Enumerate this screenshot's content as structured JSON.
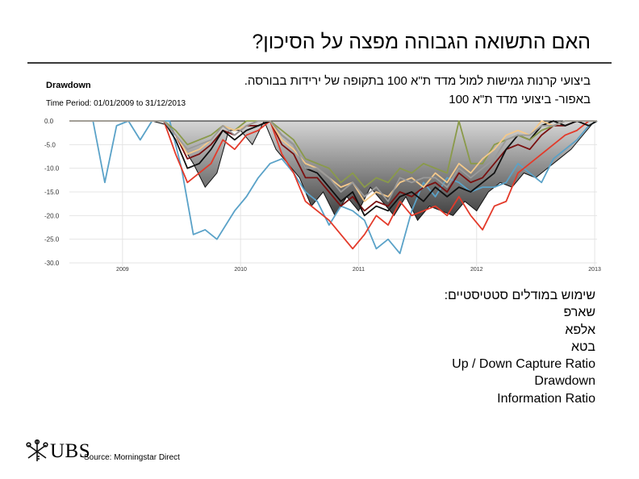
{
  "slide": {
    "title": "האם התשואה הגבוהה מפצה על הסיכון?",
    "desc_line1": "ביצועי קרנות גמישות למול מדד ת\"א 100 בתקופה של ירידות בבורסה.",
    "desc_line2": "באפור- ביצועי מדד ת\"א 100",
    "list_heading": "שימוש במודלים סטטיסטיים:",
    "list_items": [
      "שארפ",
      "אלפא",
      "בטא",
      "Up / Down Capture Ratio",
      "Drawdown",
      "Information Ratio"
    ],
    "brand": "UBS",
    "source": "Source: Morningstar Direct"
  },
  "colors": {
    "area_top": "#d6d6d6",
    "area_bottom": "#3b3b3b",
    "grid": "#e4e4e4",
    "text": "#000000"
  },
  "chart_data": {
    "type": "line",
    "title": "Drawdown",
    "subtitle": "Time Period: 01/01/2009 to 31/12/2013",
    "ylim": [
      -30,
      0
    ],
    "xlim": [
      2008.55,
      2013.02
    ],
    "y_ticks": [
      0,
      -5,
      -10,
      -15,
      -20,
      -25,
      -30
    ],
    "y_tick_labels": [
      "0.0",
      "-5.0",
      "-10.0",
      "-15.0",
      "-20.0",
      "-25.0",
      "-30.0"
    ],
    "x_ticks": [
      2009,
      2010,
      2011,
      2012,
      2013
    ],
    "x_tick_labels": [
      "2009",
      "2010",
      "2011",
      "2012",
      "2013"
    ],
    "area": {
      "name": "TA-100",
      "color": "#555555",
      "x": [
        2008.8,
        2008.95,
        2009.1,
        2009.25,
        2009.4,
        2009.5,
        2009.6,
        2009.7,
        2009.8,
        2009.9,
        2010.0,
        2010.1,
        2010.2,
        2010.3,
        2010.4,
        2010.5,
        2010.6,
        2010.7,
        2010.8,
        2010.9,
        2011.0,
        2011.1,
        2011.2,
        2011.3,
        2011.4,
        2011.5,
        2011.6,
        2011.7,
        2011.8,
        2011.9,
        2012.0,
        2012.1,
        2012.2,
        2012.3,
        2012.4,
        2012.5,
        2012.6,
        2012.7,
        2012.8,
        2012.9,
        2013.0
      ],
      "values": [
        0,
        0,
        0,
        0,
        -1,
        -5,
        -9,
        -14,
        -11,
        -2,
        -2,
        -5,
        0,
        -6,
        -9,
        -12,
        -18,
        -15,
        -20,
        -16,
        -19,
        -14,
        -17,
        -20,
        -16,
        -21,
        -18,
        -19,
        -20,
        -17,
        -19,
        -15,
        -13,
        -14,
        -11,
        -12,
        -10,
        -8,
        -6,
        -3,
        0
      ]
    },
    "series": [
      {
        "name": "light-blue",
        "color": "#5aa2c8",
        "x": [
          2008.55,
          2008.75,
          2008.85,
          2008.95,
          2009.05,
          2009.15,
          2009.25,
          2009.4,
          2009.5,
          2009.6,
          2009.7,
          2009.8,
          2009.95,
          2010.05,
          2010.15,
          2010.25,
          2010.35,
          2010.45,
          2010.55,
          2010.65,
          2010.75,
          2010.85,
          2010.95,
          2011.05,
          2011.15,
          2011.25,
          2011.35,
          2011.45,
          2011.55,
          2011.65,
          2011.75,
          2011.85,
          2011.95,
          2012.05,
          2012.15,
          2012.25,
          2012.35,
          2012.45,
          2012.55,
          2012.65,
          2012.75,
          2012.85,
          2012.95,
          2013.02
        ],
        "values": [
          0,
          0,
          -13,
          -1,
          0,
          -4,
          0,
          0,
          -10,
          -24,
          -23,
          -25,
          -19,
          -16,
          -12,
          -9,
          -8,
          -11,
          -15,
          -17,
          -22,
          -18,
          -19,
          -21,
          -27,
          -25,
          -28,
          -19,
          -13,
          -16,
          -12,
          -13,
          -15,
          -14,
          -14,
          -13,
          -9,
          -11,
          -13,
          -8,
          -6,
          -4,
          -1,
          0
        ]
      },
      {
        "name": "red",
        "color": "#e33a2a",
        "x": [
          2008.55,
          2009.35,
          2009.45,
          2009.55,
          2009.65,
          2009.75,
          2009.85,
          2009.95,
          2010.05,
          2010.15,
          2010.25,
          2010.35,
          2010.45,
          2010.55,
          2010.65,
          2010.75,
          2010.85,
          2010.95,
          2011.05,
          2011.15,
          2011.25,
          2011.35,
          2011.45,
          2011.55,
          2011.65,
          2011.75,
          2011.85,
          2011.95,
          2012.05,
          2012.15,
          2012.25,
          2012.35,
          2012.45,
          2012.55,
          2012.65,
          2012.75,
          2012.85,
          2012.95,
          2013.02
        ],
        "values": [
          0,
          0,
          -7,
          -13,
          -11,
          -9,
          -4,
          -6,
          -3,
          -2,
          0,
          -7,
          -11,
          -17,
          -19,
          -21,
          -24,
          -27,
          -24,
          -20,
          -22,
          -17,
          -20,
          -19,
          -18,
          -20,
          -16,
          -20,
          -23,
          -18,
          -17,
          -11,
          -9,
          -7,
          -5,
          -3,
          -2,
          0,
          0
        ]
      },
      {
        "name": "dark-red",
        "color": "#7a1010",
        "x": [
          2008.55,
          2009.35,
          2009.45,
          2009.55,
          2009.65,
          2009.75,
          2009.85,
          2009.95,
          2010.05,
          2010.15,
          2010.25,
          2010.35,
          2010.45,
          2010.55,
          2010.65,
          2010.75,
          2010.85,
          2010.95,
          2011.05,
          2011.15,
          2011.25,
          2011.35,
          2011.45,
          2011.55,
          2011.65,
          2011.75,
          2011.85,
          2011.95,
          2012.05,
          2012.15,
          2012.25,
          2012.35,
          2012.45,
          2012.55,
          2012.65,
          2012.75,
          2012.85,
          2012.95,
          2013.02
        ],
        "values": [
          0,
          0,
          -3,
          -8,
          -7,
          -5,
          -2,
          -3,
          -1,
          -1,
          0,
          -5,
          -7,
          -12,
          -12,
          -15,
          -18,
          -16,
          -19,
          -17,
          -18,
          -15,
          -16,
          -14,
          -13,
          -15,
          -11,
          -13,
          -12,
          -9,
          -6,
          -5,
          -6,
          -3,
          -1,
          -1,
          0,
          0,
          0
        ]
      },
      {
        "name": "black",
        "color": "#111111",
        "x": [
          2008.55,
          2009.35,
          2009.45,
          2009.55,
          2009.65,
          2009.75,
          2009.85,
          2009.95,
          2010.05,
          2010.15,
          2010.25,
          2010.35,
          2010.45,
          2010.55,
          2010.65,
          2010.75,
          2010.85,
          2010.95,
          2011.05,
          2011.15,
          2011.25,
          2011.35,
          2011.45,
          2011.55,
          2011.65,
          2011.75,
          2011.85,
          2011.95,
          2012.05,
          2012.15,
          2012.25,
          2012.35,
          2012.45,
          2012.55,
          2012.65,
          2012.75,
          2012.85,
          2012.95,
          2013.02
        ],
        "values": [
          0,
          0,
          -4,
          -10,
          -9,
          -6,
          -2,
          -4,
          -2,
          -1,
          0,
          -3,
          -5,
          -10,
          -11,
          -14,
          -17,
          -15,
          -20,
          -18,
          -19,
          -16,
          -15,
          -17,
          -14,
          -16,
          -14,
          -15,
          -13,
          -11,
          -6,
          -3,
          -4,
          -1,
          0,
          -1,
          0,
          -1,
          0
        ]
      },
      {
        "name": "olive",
        "color": "#8a9a4a",
        "x": [
          2008.55,
          2009.35,
          2009.45,
          2009.55,
          2009.65,
          2009.75,
          2009.85,
          2009.95,
          2010.05,
          2010.15,
          2010.25,
          2010.35,
          2010.45,
          2010.55,
          2010.65,
          2010.75,
          2010.85,
          2010.95,
          2011.05,
          2011.15,
          2011.25,
          2011.35,
          2011.45,
          2011.55,
          2011.65,
          2011.75,
          2011.85,
          2011.95,
          2012.05,
          2012.15,
          2012.25,
          2012.35,
          2012.45,
          2012.55,
          2012.65,
          2012.75,
          2012.85,
          2012.95,
          2013.02
        ],
        "values": [
          0,
          0,
          -2,
          -5,
          -4,
          -3,
          -1,
          -2,
          0,
          0,
          0,
          -2,
          -4,
          -8,
          -9,
          -10,
          -13,
          -11,
          -14,
          -12,
          -13,
          -10,
          -11,
          -9,
          -10,
          -11,
          0,
          -9,
          -9,
          -5,
          -4,
          -3,
          -4,
          -2,
          -1,
          0,
          0,
          0,
          0
        ]
      },
      {
        "name": "cream",
        "color": "#f5c98a",
        "x": [
          2008.55,
          2009.35,
          2009.45,
          2009.55,
          2009.65,
          2009.75,
          2009.85,
          2009.95,
          2010.05,
          2010.15,
          2010.25,
          2010.35,
          2010.45,
          2010.55,
          2010.65,
          2010.75,
          2010.85,
          2010.95,
          2011.05,
          2011.15,
          2011.25,
          2011.35,
          2011.45,
          2011.55,
          2011.65,
          2011.75,
          2011.85,
          2011.95,
          2012.05,
          2012.15,
          2012.25,
          2012.35,
          2012.45,
          2012.55,
          2012.65,
          2012.75,
          2012.85,
          2012.95,
          2013.02
        ],
        "values": [
          0,
          0,
          -3,
          -7,
          -6,
          -4,
          -1,
          -2,
          -1,
          0,
          0,
          -4,
          -6,
          -9,
          -10,
          -12,
          -14,
          -13,
          -17,
          -15,
          -16,
          -13,
          -12,
          -14,
          -11,
          -13,
          -9,
          -11,
          -8,
          -6,
          -3,
          -2,
          -3,
          0,
          -1,
          0,
          0,
          0,
          0
        ]
      },
      {
        "name": "gray",
        "color": "#9a9a9a",
        "x": [
          2008.55,
          2009.35,
          2009.45,
          2009.55,
          2009.65,
          2009.75,
          2009.85,
          2009.95,
          2010.05,
          2010.15,
          2010.25,
          2010.35,
          2010.45,
          2010.55,
          2010.65,
          2010.75,
          2010.85,
          2010.95,
          2011.05,
          2011.15,
          2011.25,
          2011.35,
          2011.45,
          2011.55,
          2011.65,
          2011.75,
          2011.85,
          2011.95,
          2012.05,
          2012.15,
          2012.25,
          2012.35,
          2012.45,
          2012.55,
          2012.65,
          2012.75,
          2012.85,
          2012.95,
          2013.02
        ],
        "values": [
          0,
          0,
          -3,
          -6,
          -5,
          -4,
          -1,
          -3,
          -1,
          0,
          0,
          -3,
          -5,
          -10,
          -10,
          -12,
          -15,
          -13,
          -16,
          -14,
          -17,
          -12,
          -13,
          -12,
          -12,
          -14,
          -10,
          -12,
          -10,
          -8,
          -4,
          -3,
          -3,
          -1,
          -1,
          0,
          0,
          0,
          0
        ]
      }
    ]
  }
}
